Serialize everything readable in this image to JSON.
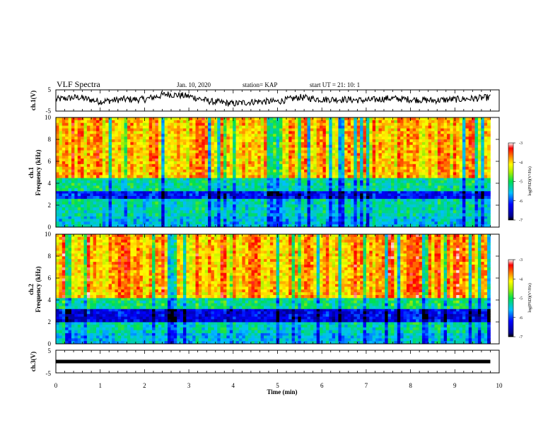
{
  "header": {
    "title": "VLF Spectra",
    "date": "Jan. 10, 2020",
    "station": "station= KAP",
    "start": "start  UT =   21: 10: 1"
  },
  "colors": {
    "low": "#00008b",
    "mid": "#00c878",
    "high": "#ff2200",
    "background": "#ffffff",
    "axis": "#000000"
  },
  "chart_data": [
    {
      "type": "line",
      "panel": "ch.1",
      "ylabel": "ch.1(V)",
      "ylim": [
        -5,
        5
      ],
      "yticks": [
        "5",
        "-5"
      ],
      "x": [
        0,
        0.5,
        1,
        1.5,
        2,
        2.5,
        3,
        3.5,
        4,
        4.5,
        5,
        5.5,
        6,
        6.5,
        7,
        7.5,
        8,
        8.5,
        9,
        9.5,
        9.8
      ],
      "values": [
        0.5,
        1.5,
        -0.5,
        0.5,
        0.5,
        3.0,
        2.0,
        -0.5,
        -1.5,
        -0.5,
        -0.5,
        1.5,
        0.5,
        0.5,
        0.0,
        1.0,
        0.5,
        0.0,
        0.5,
        1.0,
        1.5
      ]
    },
    {
      "type": "heatmap",
      "panel": "ch.1 spectrogram",
      "ylabel_top": "ch.1",
      "ylabel": "Frequency (kHz)",
      "ylim": [
        0,
        10
      ],
      "yticks": [
        "0",
        "2",
        "4",
        "6",
        "8",
        "10"
      ],
      "x_range": [
        0,
        9.8
      ],
      "colorbar": {
        "label": "log(PSD)(V²/Hz)",
        "range": [
          -7,
          -3
        ],
        "ticks": [
          "-3",
          "-4",
          "-5",
          "-6",
          "-7"
        ]
      },
      "freq_bands": [
        {
          "freq": [
            0,
            1
          ],
          "level": -5.5
        },
        {
          "freq": [
            1,
            2.6
          ],
          "level": -5.3
        },
        {
          "freq": [
            2.6,
            3.3
          ],
          "level": -6.2
        },
        {
          "freq": [
            3.3,
            4.5
          ],
          "level": -5.2
        },
        {
          "freq": [
            4.5,
            10
          ],
          "level": -3.9
        }
      ]
    },
    {
      "type": "heatmap",
      "panel": "ch.2 spectrogram",
      "ylabel_top": "ch.2",
      "ylabel": "Frequency (kHz)",
      "ylim": [
        0,
        10
      ],
      "yticks": [
        "0",
        "2",
        "4",
        "6",
        "8",
        "10"
      ],
      "x_range": [
        0,
        9.8
      ],
      "colorbar": {
        "label": "log(PSD)(V²/Hz)",
        "range": [
          -7,
          -3
        ],
        "ticks": [
          "-3",
          "-4",
          "-5",
          "-6",
          "-7"
        ]
      },
      "freq_bands": [
        {
          "freq": [
            0,
            1
          ],
          "level": -5.5
        },
        {
          "freq": [
            1,
            2.0
          ],
          "level": -5.3
        },
        {
          "freq": [
            2.0,
            3.2
          ],
          "level": -6.3
        },
        {
          "freq": [
            3.2,
            4.2
          ],
          "level": -5.1
        },
        {
          "freq": [
            4.2,
            10
          ],
          "level": -3.8
        }
      ]
    },
    {
      "type": "line",
      "panel": "ch.3",
      "ylabel": "ch.3(V)",
      "ylim": [
        -5,
        5
      ],
      "yticks": [
        "5",
        "-5"
      ],
      "x": [
        0,
        9.8
      ],
      "values": [
        0,
        0
      ]
    }
  ],
  "xaxis": {
    "label": "Time (min)",
    "range": [
      0,
      10
    ],
    "ticks": [
      "0",
      "1",
      "2",
      "3",
      "4",
      "5",
      "6",
      "7",
      "8",
      "9",
      "10"
    ]
  }
}
